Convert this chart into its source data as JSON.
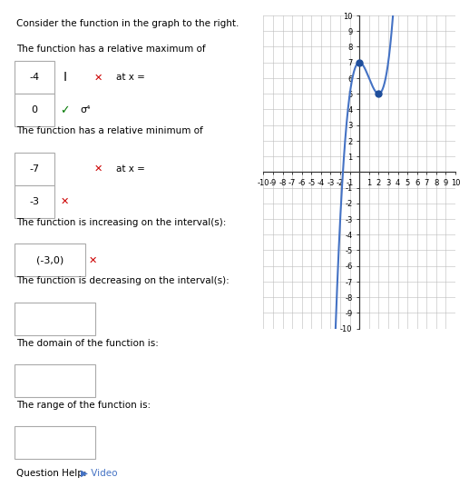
{
  "title": "",
  "xmin": -10,
  "xmax": 10,
  "ymin": -10,
  "ymax": 10,
  "x_major": 1,
  "y_major": 1,
  "bg_color": "#ffffff",
  "grid_color": "#bbbbbb",
  "axis_color": "#333333",
  "curve_color": "#4472c4",
  "dot_color": "#1f4e9b",
  "local_max": [
    0,
    7
  ],
  "local_min": [
    2,
    5
  ],
  "curve_domain_start": -3.5,
  "curve_domain_end": 5.0,
  "text_left": "Consider the function in the graph to the right.",
  "label_fontsize": 7,
  "tick_fontsize": 6
}
